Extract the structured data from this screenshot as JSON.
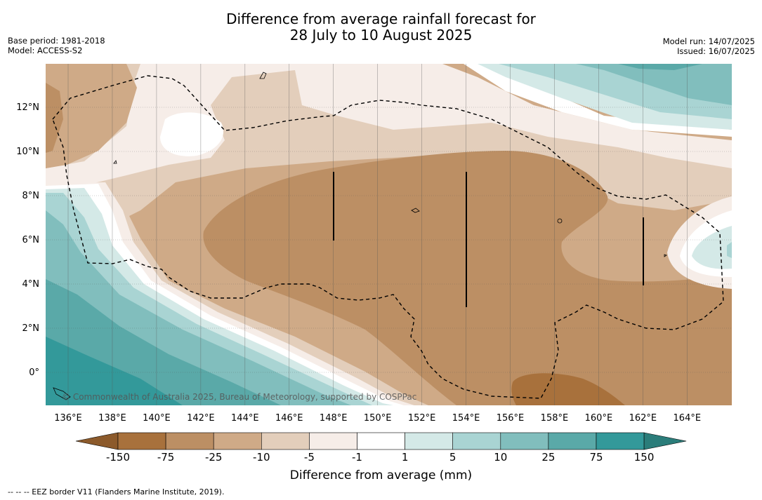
{
  "header": {
    "title_line1": "Difference from average rainfall forecast for",
    "title_line2": "28 July to 10 August 2025",
    "base_period": "Base period: 1981-2018",
    "model": "Model: ACCESS-S2",
    "model_run": "Model run: 14/07/2025",
    "issued": "Issued: 16/07/2025"
  },
  "map": {
    "lon_ticks": [
      "136°E",
      "138°E",
      "140°E",
      "142°E",
      "144°E",
      "146°E",
      "148°E",
      "150°E",
      "152°E",
      "154°E",
      "156°E",
      "158°E",
      "160°E",
      "162°E",
      "164°E"
    ],
    "lat_ticks": [
      "12°N",
      "10°N",
      "8°N",
      "6°N",
      "4°N",
      "2°N",
      "0°"
    ],
    "copyright": "© Commonwealth of Australia 2025, Bureau of Meteorology, supported by COSPPac"
  },
  "colorbar": {
    "ticks": [
      "-150",
      "-75",
      "-25",
      "-10",
      "-5",
      "-1",
      "1",
      "5",
      "10",
      "25",
      "75",
      "150"
    ],
    "colors": [
      "#a8713c",
      "#bc8f64",
      "#cfaa87",
      "#e3cebb",
      "#f6ede8",
      "#ffffff",
      "#d4e9e7",
      "#a9d4d3",
      "#81bebd",
      "#5aa9a8",
      "#33999a"
    ],
    "extend_low": "#8c5a2b",
    "extend_high": "#2b7d7a",
    "title": "Difference from average (mm)"
  },
  "footnote": "--  --  -- EEZ border V11 (Flanders Marine Institute, 2019)."
}
